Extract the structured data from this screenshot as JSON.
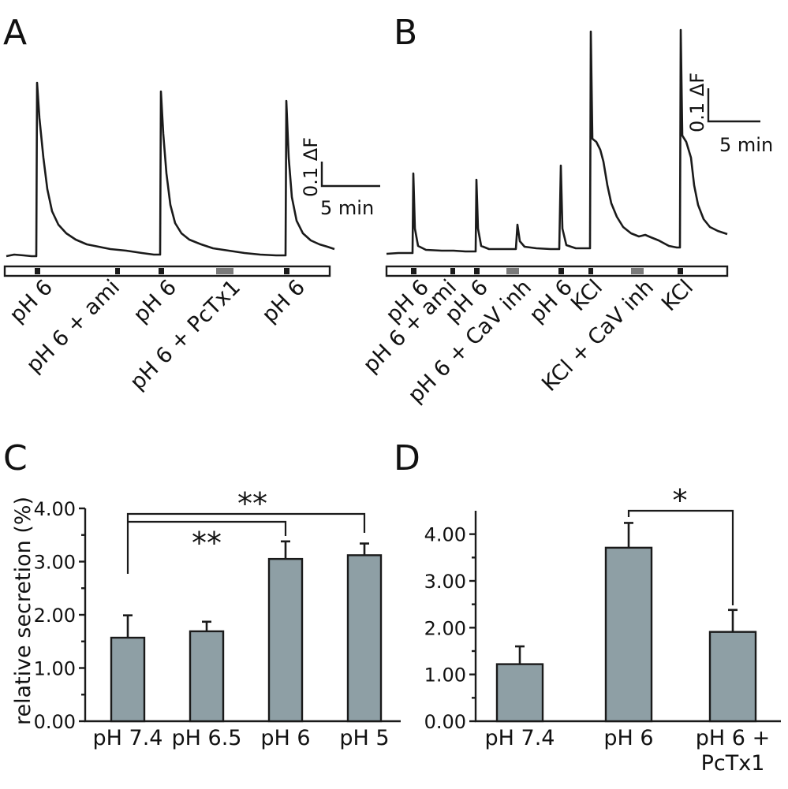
{
  "panels": {
    "A": {
      "letter": "A",
      "scale_dF": "0.1 ΔF",
      "scale_time": "5 min",
      "stimuli": [
        "pH 6",
        "pH 6 + ami",
        "pH 6",
        "pH 6 + PcTx1",
        "pH 6"
      ]
    },
    "B": {
      "letter": "B",
      "scale_dF": "0.1 ΔF",
      "scale_time": "5 min",
      "stimuli": [
        "pH 6",
        "pH 6 + ami",
        "pH 6",
        "pH 6 + CaV inh",
        "pH 6",
        "KCl",
        "KCl + CaV inh",
        "KCl"
      ]
    },
    "C": {
      "letter": "C",
      "ylabel": "relative secretion (%)",
      "significance": [
        "**",
        "**"
      ]
    },
    "D": {
      "letter": "D",
      "significance": [
        "*"
      ]
    }
  },
  "chart_data": [
    {
      "type": "bar",
      "panel": "C",
      "categories": [
        "pH 7.4",
        "pH 6.5",
        "pH 6",
        "pH 5"
      ],
      "values": [
        1.57,
        1.69,
        3.05,
        3.12
      ],
      "errors": [
        0.42,
        0.18,
        0.33,
        0.22
      ],
      "ylabel": "relative secretion (%)",
      "ylim": [
        0,
        4
      ],
      "yticks": [
        "0.00",
        "1.00",
        "2.00",
        "3.00",
        "4.00"
      ]
    },
    {
      "type": "bar",
      "panel": "D",
      "categories": [
        "pH 7.4",
        "pH 6",
        "pH 6 + PcTx1"
      ],
      "values": [
        1.22,
        3.71,
        1.91
      ],
      "errors": [
        0.38,
        0.53,
        0.47
      ],
      "ylim": [
        0,
        4.5
      ],
      "yticks": [
        "0.00",
        "1.00",
        "2.00",
        "3.00",
        "4.00"
      ]
    }
  ]
}
